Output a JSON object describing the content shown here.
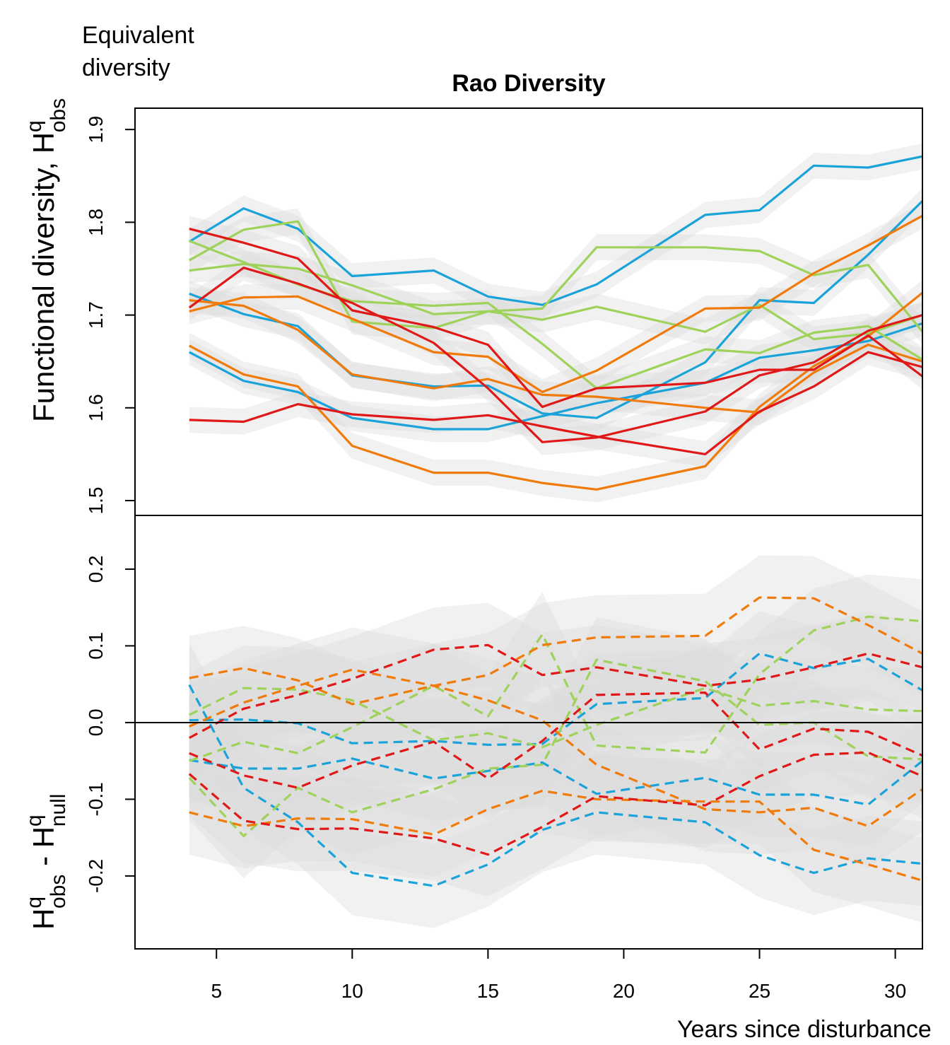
{
  "chart_data": {
    "type": "line",
    "title": "Rao Diversity",
    "corner_label_lines": [
      "Equivalent",
      "diversity"
    ],
    "xlabel": "Years since disturbance",
    "xlim": [
      2,
      31
    ],
    "xticks": [
      5,
      10,
      15,
      20,
      25,
      30
    ],
    "x": [
      4,
      6,
      8,
      10,
      13,
      15,
      17,
      19,
      23,
      25,
      27,
      29,
      31
    ],
    "top_panel": {
      "ylabel": "Functional diversity, H",
      "ylabel_sup": "q",
      "ylabel_sub": "obs",
      "ylim": [
        1.484,
        1.923
      ],
      "yticks": [
        1.5,
        1.6,
        1.7,
        1.8,
        1.9
      ],
      "line_style": "solid",
      "band_color": "#dcdcdc",
      "band_halfwidth": 0.014,
      "series": [
        {
          "color": "#1aa3d9",
          "values": [
            1.779,
            1.815,
            1.793,
            1.742,
            1.748,
            1.72,
            1.711,
            1.733,
            1.808,
            1.813,
            1.861,
            1.859,
            1.871
          ]
        },
        {
          "color": "#1aa3d9",
          "values": [
            1.723,
            1.701,
            1.688,
            1.635,
            1.623,
            1.624,
            1.594,
            1.589,
            1.649,
            1.716,
            1.713,
            1.765,
            1.823
          ]
        },
        {
          "color": "#1aa3d9",
          "values": [
            1.66,
            1.629,
            1.617,
            1.589,
            1.577,
            1.577,
            1.591,
            1.605,
            1.627,
            1.654,
            1.662,
            1.672,
            1.691
          ]
        },
        {
          "color": "#9ed25a",
          "values": [
            1.759,
            1.792,
            1.801,
            1.693,
            1.686,
            1.704,
            1.707,
            1.773,
            1.773,
            1.769,
            1.743,
            1.754,
            1.682
          ]
        },
        {
          "color": "#9ed25a",
          "values": [
            1.78,
            1.757,
            1.733,
            1.715,
            1.71,
            1.713,
            1.669,
            1.621,
            1.663,
            1.659,
            1.681,
            1.688,
            1.652
          ]
        },
        {
          "color": "#9ed25a",
          "values": [
            1.748,
            1.755,
            1.75,
            1.732,
            1.701,
            1.704,
            1.695,
            1.709,
            1.682,
            1.711,
            1.674,
            1.68,
            1.7
          ]
        },
        {
          "color": "#f07a0a",
          "values": [
            1.704,
            1.719,
            1.72,
            1.696,
            1.66,
            1.655,
            1.617,
            1.64,
            1.707,
            1.708,
            1.745,
            1.775,
            1.807
          ]
        },
        {
          "color": "#f07a0a",
          "values": [
            1.716,
            1.71,
            1.684,
            1.636,
            1.621,
            1.631,
            1.614,
            1.612,
            1.6,
            1.595,
            1.638,
            1.668,
            1.65
          ]
        },
        {
          "color": "#f07a0a",
          "values": [
            1.667,
            1.636,
            1.623,
            1.559,
            1.53,
            1.53,
            1.519,
            1.512,
            1.537,
            1.601,
            1.645,
            1.677,
            1.724
          ]
        },
        {
          "color": "#e01818",
          "values": [
            1.793,
            1.778,
            1.761,
            1.705,
            1.687,
            1.668,
            1.601,
            1.621,
            1.627,
            1.641,
            1.641,
            1.678,
            1.634
          ]
        },
        {
          "color": "#e01818",
          "values": [
            1.708,
            1.751,
            1.734,
            1.713,
            1.67,
            1.621,
            1.563,
            1.568,
            1.596,
            1.635,
            1.649,
            1.683,
            1.7
          ]
        },
        {
          "color": "#e01818",
          "values": [
            1.587,
            1.585,
            1.604,
            1.593,
            1.587,
            1.592,
            1.58,
            1.569,
            1.55,
            1.596,
            1.623,
            1.66,
            1.644
          ]
        }
      ]
    },
    "bottom_panel": {
      "ylabel_prefix": "H",
      "ylabel_sup1": "q",
      "ylabel_sub1": "obs",
      "ylabel_mid": " - H",
      "ylabel_sup2": "q",
      "ylabel_sub2": "null",
      "ylim": [
        -0.295,
        0.27
      ],
      "yticks": [
        -0.2,
        -0.1,
        0.0,
        0.1,
        0.2
      ],
      "ytick_labels": [
        "-0.2",
        "-0.1",
        "0.0",
        "0.1",
        "0.2"
      ],
      "zero_line": 0.0,
      "line_style": "dashed",
      "band_color": "#dcdcdc",
      "band_halfwidth": 0.055,
      "series": [
        {
          "color": "#1aa3d9",
          "values": [
            0.049,
            -0.085,
            -0.13,
            -0.196,
            -0.213,
            -0.185,
            -0.14,
            -0.117,
            -0.13,
            -0.173,
            -0.196,
            -0.177,
            -0.184
          ]
        },
        {
          "color": "#1aa3d9",
          "values": [
            -0.049,
            -0.06,
            -0.06,
            -0.047,
            -0.073,
            -0.063,
            -0.052,
            -0.093,
            -0.072,
            -0.094,
            -0.094,
            -0.107,
            -0.05
          ]
        },
        {
          "color": "#1aa3d9",
          "values": [
            0.003,
            0.004,
            -0.001,
            -0.027,
            -0.024,
            -0.029,
            -0.028,
            0.024,
            0.032,
            0.09,
            0.071,
            0.083,
            0.042
          ]
        },
        {
          "color": "#9ed25a",
          "values": [
            0.01,
            0.045,
            0.043,
            0.029,
            -0.023,
            -0.014,
            -0.032,
            -0.003,
            0.045,
            0.022,
            0.028,
            0.017,
            0.015
          ]
        },
        {
          "color": "#9ed25a",
          "values": [
            -0.072,
            -0.148,
            -0.085,
            -0.117,
            -0.087,
            -0.06,
            -0.055,
            0.082,
            0.054,
            -0.003,
            0.0,
            -0.044,
            -0.048
          ]
        },
        {
          "color": "#9ed25a",
          "values": [
            -0.05,
            -0.025,
            -0.04,
            -0.006,
            0.048,
            0.008,
            0.115,
            -0.03,
            -0.039,
            0.063,
            0.12,
            0.138,
            0.132
          ]
        },
        {
          "color": "#f07a0a",
          "values": [
            0.058,
            0.071,
            0.055,
            0.024,
            0.048,
            0.062,
            0.101,
            0.111,
            0.113,
            0.163,
            0.162,
            0.127,
            0.09
          ]
        },
        {
          "color": "#f07a0a",
          "values": [
            -0.005,
            0.026,
            0.048,
            0.069,
            0.048,
            0.029,
            0.003,
            -0.055,
            -0.113,
            -0.117,
            -0.111,
            -0.135,
            -0.087
          ]
        },
        {
          "color": "#f07a0a",
          "values": [
            -0.117,
            -0.135,
            -0.125,
            -0.126,
            -0.146,
            -0.113,
            -0.089,
            -0.1,
            -0.103,
            -0.103,
            -0.166,
            -0.185,
            -0.206
          ]
        },
        {
          "color": "#e01818",
          "values": [
            -0.02,
            0.018,
            0.036,
            0.057,
            0.095,
            0.101,
            0.062,
            0.072,
            0.048,
            0.056,
            0.072,
            0.09,
            0.072
          ]
        },
        {
          "color": "#e01818",
          "values": [
            -0.067,
            -0.128,
            -0.139,
            -0.138,
            -0.151,
            -0.172,
            -0.136,
            -0.096,
            -0.108,
            -0.07,
            -0.042,
            -0.039,
            -0.07
          ]
        },
        {
          "color": "#e01818",
          "values": [
            -0.04,
            -0.069,
            -0.085,
            -0.056,
            -0.025,
            -0.073,
            -0.024,
            0.036,
            0.039,
            -0.035,
            -0.008,
            -0.012,
            -0.043
          ]
        }
      ]
    }
  }
}
